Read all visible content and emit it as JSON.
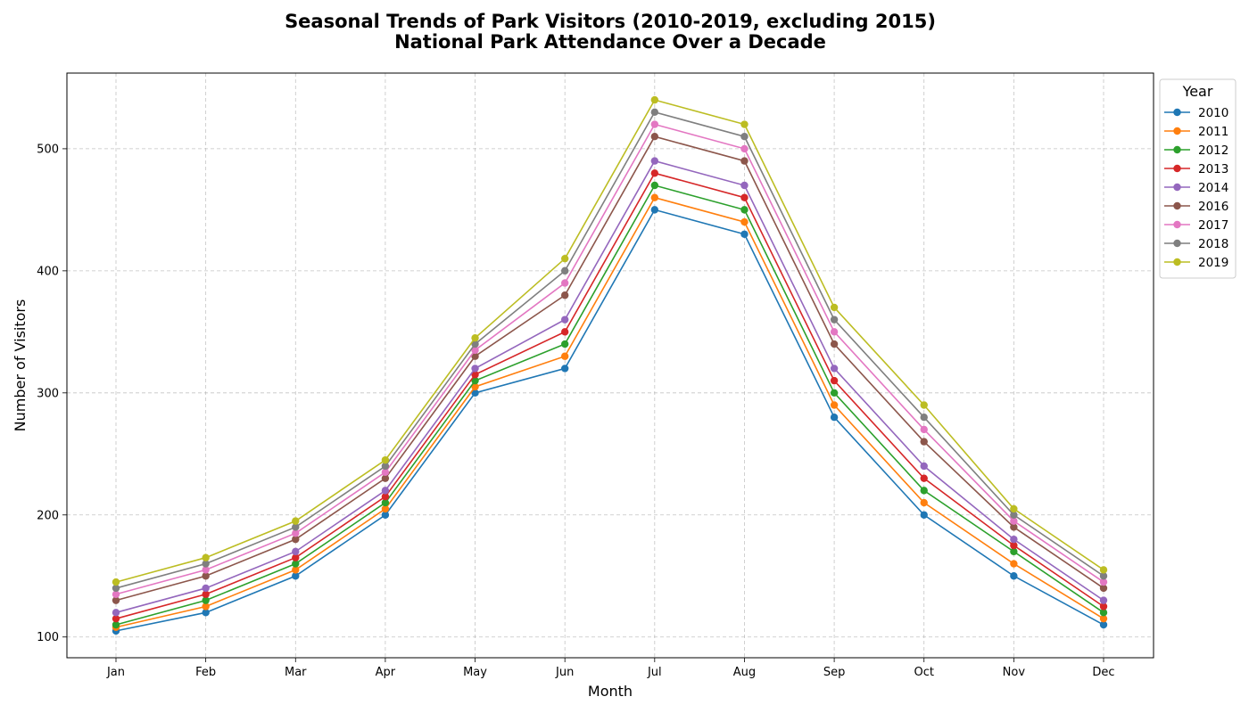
{
  "chart_data": {
    "type": "line",
    "title": "Seasonal Trends of Park Visitors (2010-2019, excluding 2015)",
    "subtitle": "National Park Attendance Over a Decade",
    "xlabel": "Month",
    "ylabel": "Number of Visitors",
    "categories": [
      "Jan",
      "Feb",
      "Mar",
      "Apr",
      "May",
      "Jun",
      "Jul",
      "Aug",
      "Sep",
      "Oct",
      "Nov",
      "Dec"
    ],
    "ylim": [
      83,
      562
    ],
    "yticks": [
      100,
      200,
      300,
      400,
      500
    ],
    "grid": true,
    "legend_title": "Year",
    "legend_position": "outside-right-top",
    "series": [
      {
        "name": "2010",
        "color": "#1f77b4",
        "values": [
          105,
          120,
          150,
          200,
          300,
          320,
          450,
          430,
          280,
          200,
          150,
          110
        ]
      },
      {
        "name": "2011",
        "color": "#ff7f0e",
        "values": [
          108,
          125,
          155,
          205,
          305,
          330,
          460,
          440,
          290,
          210,
          160,
          115
        ]
      },
      {
        "name": "2012",
        "color": "#2ca02c",
        "values": [
          110,
          130,
          160,
          210,
          310,
          340,
          470,
          450,
          300,
          220,
          170,
          120
        ]
      },
      {
        "name": "2013",
        "color": "#d62728",
        "values": [
          115,
          135,
          165,
          215,
          315,
          350,
          480,
          460,
          310,
          230,
          175,
          125
        ]
      },
      {
        "name": "2014",
        "color": "#9467bd",
        "values": [
          120,
          140,
          170,
          220,
          320,
          360,
          490,
          470,
          320,
          240,
          180,
          130
        ]
      },
      {
        "name": "2016",
        "color": "#8c564b",
        "values": [
          130,
          150,
          180,
          230,
          330,
          380,
          510,
          490,
          340,
          260,
          190,
          140
        ]
      },
      {
        "name": "2017",
        "color": "#e377c2",
        "values": [
          135,
          155,
          185,
          235,
          335,
          390,
          520,
          500,
          350,
          270,
          195,
          145
        ]
      },
      {
        "name": "2018",
        "color": "#7f7f7f",
        "values": [
          140,
          160,
          190,
          240,
          340,
          400,
          530,
          510,
          360,
          280,
          200,
          150
        ]
      },
      {
        "name": "2019",
        "color": "#bcbd22",
        "values": [
          145,
          165,
          195,
          245,
          345,
          410,
          540,
          520,
          370,
          290,
          205,
          155
        ]
      }
    ]
  }
}
